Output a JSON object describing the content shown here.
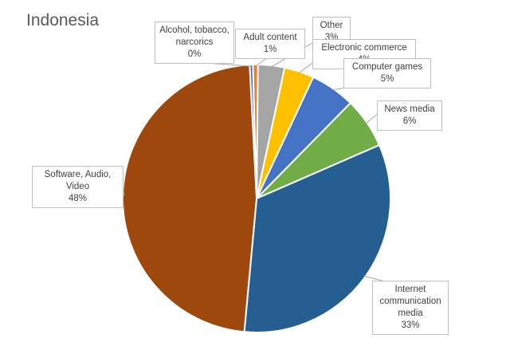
{
  "chart_data": {
    "type": "pie",
    "title": "Indonesia",
    "slices": [
      {
        "name": "Alcohol, tobacco, narcorics",
        "label_lines": [
          "Alcohol, tobacco,",
          "narcorics"
        ],
        "pct_label": "0%",
        "value": 0.4,
        "color": "#4472C4"
      },
      {
        "name": "Adult content",
        "label_lines": [
          "Adult content"
        ],
        "pct_label": "1%",
        "value": 0.6,
        "color": "#ED7D31"
      },
      {
        "name": "Other",
        "label_lines": [
          "Other"
        ],
        "pct_label": "3%",
        "value": 3.2,
        "color": "#A5A5A5"
      },
      {
        "name": "Electronic commerce",
        "label_lines": [
          "Electronic commerce"
        ],
        "pct_label": "4%",
        "value": 3.6,
        "color": "#FFC000"
      },
      {
        "name": "Computer games",
        "label_lines": [
          "Computer games"
        ],
        "pct_label": "5%",
        "value": 5.4,
        "color": "#4472C4"
      },
      {
        "name": "News media",
        "label_lines": [
          "News media"
        ],
        "pct_label": "6%",
        "value": 6.1,
        "color": "#70AD47"
      },
      {
        "name": "Internet communication media",
        "label_lines": [
          "Internet",
          "communication",
          "media"
        ],
        "pct_label": "33%",
        "value": 33.0,
        "color": "#255E91"
      },
      {
        "name": "Software, Audio, Video",
        "label_lines": [
          "Software, Audio,",
          "Video"
        ],
        "pct_label": "48%",
        "value": 47.7,
        "color": "#9E480E"
      }
    ]
  }
}
